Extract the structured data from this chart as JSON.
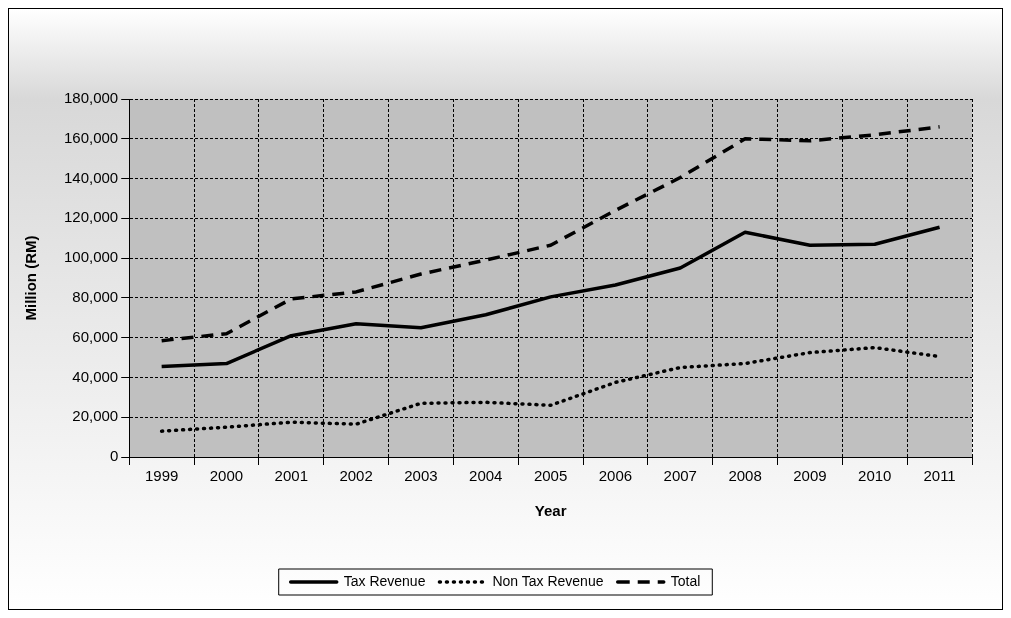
{
  "chart_data": {
    "type": "line",
    "xlabel": "Year",
    "ylabel": "Million (RM)",
    "categories": [
      "1999",
      "2000",
      "2001",
      "2002",
      "2003",
      "2004",
      "2005",
      "2006",
      "2007",
      "2008",
      "2009",
      "2010",
      "2011"
    ],
    "series": [
      {
        "name": "Tax Revenue",
        "color": "#000000",
        "line_style": "solid",
        "values": [
          45500,
          47000,
          61000,
          67000,
          65000,
          71500,
          80500,
          86500,
          95000,
          113000,
          106500,
          107000,
          115500
        ]
      },
      {
        "name": "Non Tax Revenue",
        "color": "#000000",
        "line_style": "dotted",
        "values": [
          13000,
          15000,
          17500,
          16500,
          27000,
          27500,
          26000,
          37500,
          45000,
          47000,
          52500,
          55000,
          50500
        ]
      },
      {
        "name": "Total",
        "color": "#000000",
        "line_style": "dashed",
        "values": [
          58500,
          62000,
          79500,
          83000,
          92000,
          99000,
          106500,
          124000,
          140500,
          160000,
          159000,
          162000,
          166000
        ]
      }
    ],
    "ylim": [
      0,
      180000
    ],
    "yticks": [
      0,
      {
        "value": 20000,
        "label": "20,000"
      },
      {
        "value": 40000,
        "label": "40,000"
      },
      {
        "value": 60000,
        "label": "60,000"
      },
      {
        "value": 80000,
        "label": "80,000"
      },
      {
        "value": 100000,
        "label": "100,000"
      },
      {
        "value": 120000,
        "label": "120,000"
      },
      {
        "value": 140000,
        "label": "140,000"
      },
      {
        "value": 160000,
        "label": "160,000"
      },
      {
        "value": 180000,
        "label": "180,000"
      }
    ],
    "grid": true,
    "legend": "bottom",
    "marker": "none"
  }
}
